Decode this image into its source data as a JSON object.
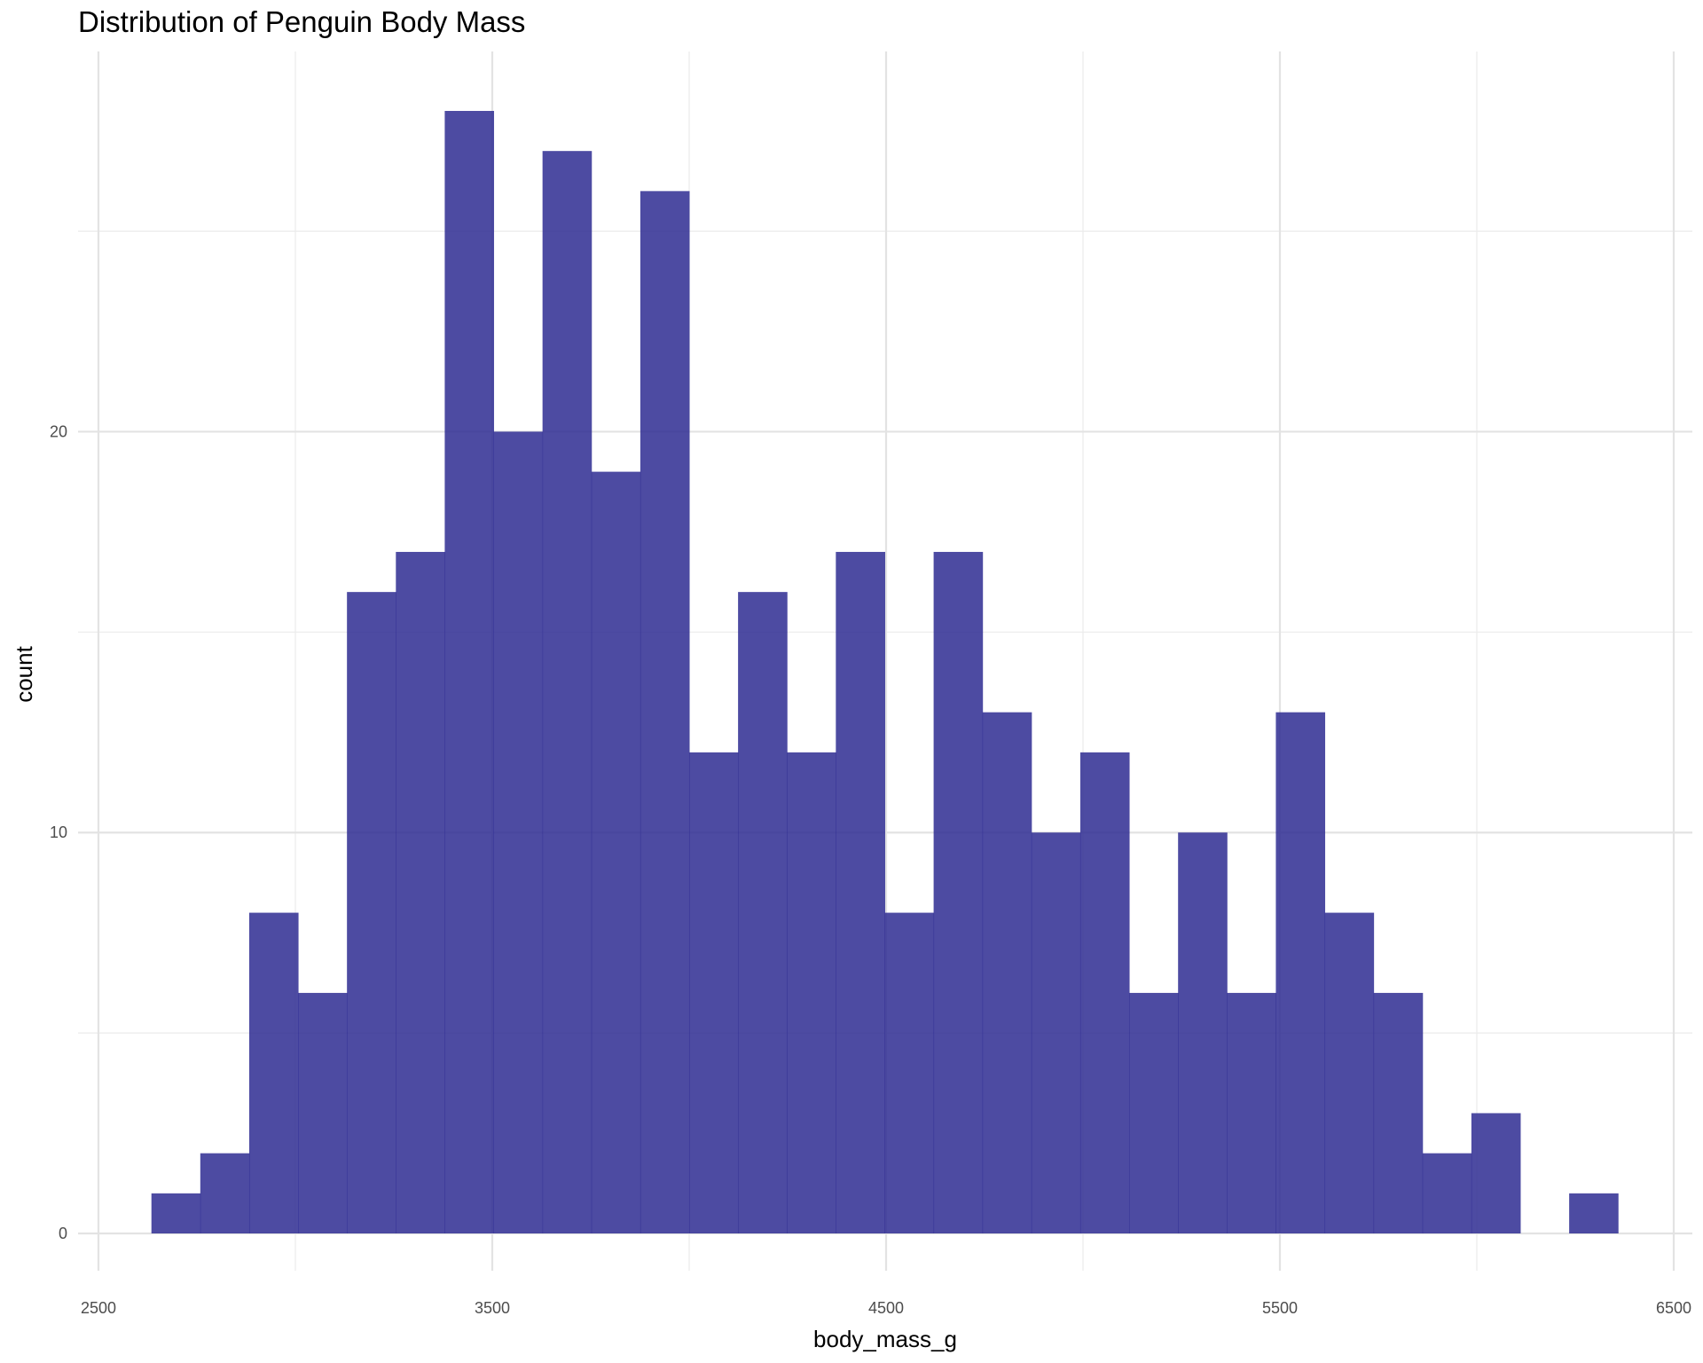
{
  "chart_data": {
    "type": "bar",
    "title": "Distribution of Penguin Body Mass",
    "xlabel": "body_mass_g",
    "ylabel": "count",
    "xlim": [
      2500,
      6500
    ],
    "ylim": [
      0,
      28
    ],
    "x_ticks": [
      2500,
      3500,
      4500,
      5500,
      6500
    ],
    "y_ticks": [
      0,
      10,
      20
    ],
    "grid": true,
    "bar_color": "#2e2b92",
    "bin_width": 124.14,
    "bins": [
      {
        "x0": 2634.5,
        "x1": 2758.6,
        "count": 1
      },
      {
        "x0": 2758.6,
        "x1": 2882.8,
        "count": 2
      },
      {
        "x0": 2882.8,
        "x1": 3006.9,
        "count": 8
      },
      {
        "x0": 3006.9,
        "x1": 3131.0,
        "count": 6
      },
      {
        "x0": 3131.0,
        "x1": 3255.2,
        "count": 16
      },
      {
        "x0": 3255.2,
        "x1": 3379.3,
        "count": 17
      },
      {
        "x0": 3379.3,
        "x1": 3503.4,
        "count": 28
      },
      {
        "x0": 3503.4,
        "x1": 3627.6,
        "count": 20
      },
      {
        "x0": 3627.6,
        "x1": 3751.7,
        "count": 27
      },
      {
        "x0": 3751.7,
        "x1": 3875.9,
        "count": 19
      },
      {
        "x0": 3875.9,
        "x1": 4000.0,
        "count": 26
      },
      {
        "x0": 4000.0,
        "x1": 4124.1,
        "count": 12
      },
      {
        "x0": 4124.1,
        "x1": 4248.3,
        "count": 16
      },
      {
        "x0": 4248.3,
        "x1": 4372.4,
        "count": 12
      },
      {
        "x0": 4372.4,
        "x1": 4496.6,
        "count": 17
      },
      {
        "x0": 4496.6,
        "x1": 4620.7,
        "count": 8
      },
      {
        "x0": 4620.7,
        "x1": 4744.8,
        "count": 17
      },
      {
        "x0": 4744.8,
        "x1": 4869.0,
        "count": 13
      },
      {
        "x0": 4869.0,
        "x1": 4993.1,
        "count": 10
      },
      {
        "x0": 4993.1,
        "x1": 5117.2,
        "count": 12
      },
      {
        "x0": 5117.2,
        "x1": 5241.4,
        "count": 6
      },
      {
        "x0": 5241.4,
        "x1": 5365.5,
        "count": 10
      },
      {
        "x0": 5365.5,
        "x1": 5489.7,
        "count": 6
      },
      {
        "x0": 5489.7,
        "x1": 5613.8,
        "count": 13
      },
      {
        "x0": 5613.8,
        "x1": 5737.9,
        "count": 8
      },
      {
        "x0": 5737.9,
        "x1": 5862.1,
        "count": 6
      },
      {
        "x0": 5862.1,
        "x1": 5986.2,
        "count": 2
      },
      {
        "x0": 5986.2,
        "x1": 6110.3,
        "count": 3
      },
      {
        "x0": 6110.3,
        "x1": 6234.5,
        "count": 0
      },
      {
        "x0": 6234.5,
        "x1": 6358.6,
        "count": 1
      }
    ]
  }
}
